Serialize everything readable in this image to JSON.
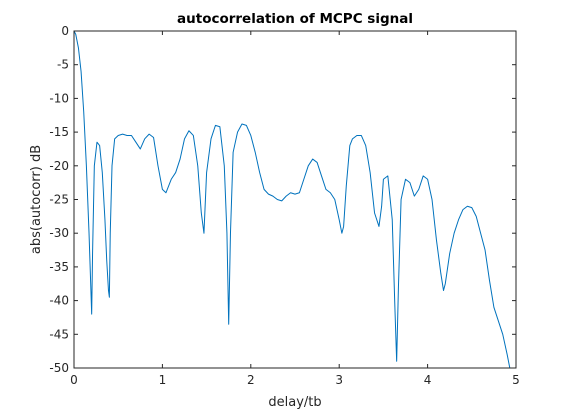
{
  "chart_data": {
    "type": "line",
    "title": "autocorrelation of MCPC signal",
    "xlabel": "delay/tb",
    "ylabel": "abs(autocorr) dB",
    "xlim": [
      0,
      5
    ],
    "ylim": [
      -50,
      0
    ],
    "xticks": [
      0,
      1,
      2,
      3,
      4,
      5
    ],
    "yticks": [
      0,
      -5,
      -10,
      -15,
      -20,
      -25,
      -30,
      -35,
      -40,
      -45,
      -50
    ],
    "xtick_labels": [
      "0",
      "1",
      "2",
      "3",
      "4",
      "5"
    ],
    "ytick_labels": [
      "0",
      "-5",
      "-10",
      "-15",
      "-20",
      "-25",
      "-30",
      "-35",
      "-40",
      "-45",
      "-50"
    ],
    "grid": false,
    "line_color": "#0072BD",
    "series": [
      {
        "x": [
          0,
          0.02,
          0.05,
          0.08,
          0.11,
          0.14,
          0.17,
          0.19,
          0.2,
          0.21,
          0.23,
          0.26,
          0.29,
          0.32,
          0.35,
          0.37,
          0.39,
          0.4,
          0.41,
          0.43,
          0.46,
          0.5,
          0.55,
          0.6,
          0.65,
          0.7,
          0.75,
          0.8,
          0.85,
          0.9,
          0.95,
          1.0,
          1.04,
          1.07,
          1.1,
          1.15,
          1.2,
          1.25,
          1.3,
          1.35,
          1.4,
          1.44,
          1.47,
          1.5,
          1.55,
          1.6,
          1.65,
          1.7,
          1.73,
          1.75,
          1.77,
          1.8,
          1.85,
          1.9,
          1.95,
          2.0,
          2.05,
          2.1,
          2.15,
          2.2,
          2.25,
          2.3,
          2.35,
          2.4,
          2.45,
          2.5,
          2.55,
          2.6,
          2.65,
          2.7,
          2.75,
          2.8,
          2.85,
          2.9,
          2.95,
          3.0,
          3.03,
          3.05,
          3.08,
          3.12,
          3.15,
          3.2,
          3.25,
          3.3,
          3.35,
          3.4,
          3.45,
          3.48,
          3.5,
          3.55,
          3.6,
          3.63,
          3.65,
          3.67,
          3.7,
          3.75,
          3.8,
          3.85,
          3.9,
          3.95,
          4.0,
          4.05,
          4.1,
          4.15,
          4.18,
          4.2,
          4.25,
          4.3,
          4.35,
          4.4,
          4.45,
          4.5,
          4.55,
          4.6,
          4.65,
          4.7,
          4.75,
          4.8,
          4.85,
          4.9,
          4.93
        ],
        "y": [
          0,
          -0.5,
          -2.5,
          -6,
          -12,
          -20,
          -30,
          -38,
          -42,
          -33,
          -20,
          -16.5,
          -17,
          -21,
          -28,
          -34,
          -38.5,
          -39.5,
          -30,
          -20,
          -16,
          -15.5,
          -15.3,
          -15.5,
          -15.5,
          -16.5,
          -17.5,
          -16,
          -15.3,
          -15.8,
          -20,
          -23.5,
          -24,
          -23,
          -22,
          -21,
          -19,
          -16,
          -14.8,
          -15.5,
          -20,
          -27,
          -30,
          -21,
          -16,
          -14,
          -14.2,
          -20,
          -30,
          -43.5,
          -30,
          -18,
          -15,
          -13.8,
          -14,
          -15.5,
          -18,
          -21,
          -23.5,
          -24.2,
          -24.5,
          -25,
          -25.2,
          -24.5,
          -24,
          -24.2,
          -24,
          -22,
          -20,
          -19,
          -19.5,
          -21.5,
          -23.5,
          -24,
          -25,
          -28,
          -30,
          -29,
          -23,
          -17,
          -16,
          -15.5,
          -15.5,
          -17,
          -21,
          -27,
          -29,
          -26,
          -22,
          -21.5,
          -28,
          -41,
          -49,
          -38,
          -25,
          -22,
          -22.5,
          -24.5,
          -23.5,
          -21.5,
          -22,
          -25,
          -31,
          -36,
          -38.5,
          -37.5,
          -33,
          -30,
          -28,
          -26.5,
          -26,
          -26.2,
          -27.5,
          -30,
          -32.5,
          -37,
          -41,
          -43,
          -45,
          -48,
          -50
        ]
      }
    ]
  }
}
